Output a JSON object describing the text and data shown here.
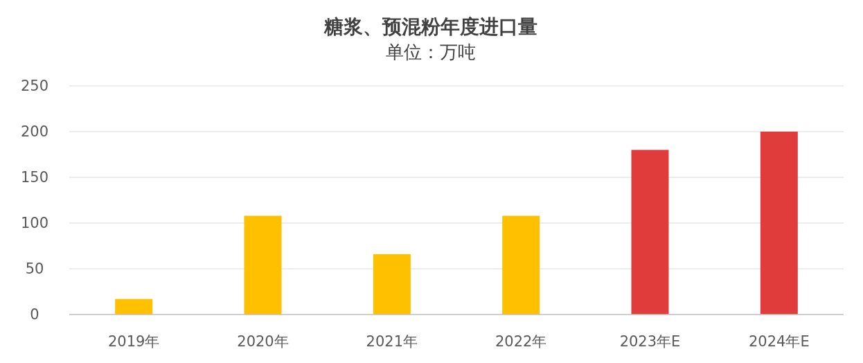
{
  "chart_data": {
    "type": "bar",
    "title": "糖浆、预混粉年度进口量",
    "subtitle": "单位：万吨",
    "categories": [
      "2019年",
      "2020年",
      "2021年",
      "2022年",
      "2023年E",
      "2024年E"
    ],
    "values": [
      17,
      108,
      66,
      108,
      180,
      200
    ],
    "colors": [
      "#ffc000",
      "#ffc000",
      "#ffc000",
      "#ffc000",
      "#e03c3c",
      "#e03c3c"
    ],
    "ylim": [
      0,
      250
    ],
    "yticks": [
      0,
      50,
      100,
      150,
      200,
      250
    ],
    "grid": "y"
  }
}
